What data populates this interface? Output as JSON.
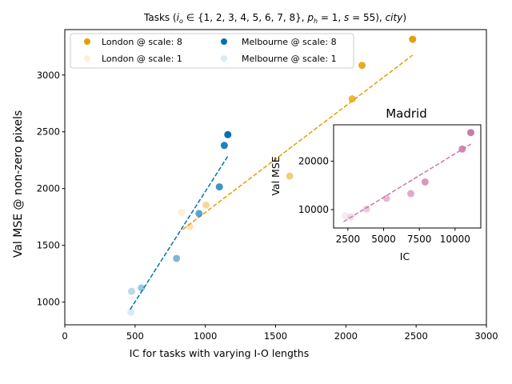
{
  "chart_data": [
    {
      "type": "scatter",
      "title": "Tasks $(i_o \\in \\{1,2,3,4,5,6,7,8\\}, p_h=1, s=55), city)$",
      "title_parts": {
        "prefix": "Tasks (",
        "io": "i",
        "io_sub": "o",
        "set": " ∈ {1, 2, 3, 4, 5, 6, 7, 8}, ",
        "ph": "p",
        "ph_sub": "h",
        "rest1": " = 1, ",
        "s": "s",
        "rest2": " = 55), ",
        "city": "city",
        "suffix": ")"
      },
      "xlabel": "IC for tasks with varying I-O lengths",
      "ylabel": "Val MSE @ non-zero pixels",
      "xlim": [
        0,
        3000
      ],
      "ylim": [
        800,
        3400
      ],
      "xticks": [
        0,
        500,
        1000,
        1500,
        2000,
        2500,
        3000
      ],
      "yticks": [
        1000,
        1500,
        2000,
        2500,
        3000
      ],
      "xtick_labels": [
        "0",
        "500",
        "1000",
        "1500",
        "2000",
        "2500",
        "3000"
      ],
      "ytick_labels": [
        "1000",
        "1500",
        "2000",
        "2500",
        "3000"
      ],
      "grid": false,
      "legend": {
        "placement": "top-left",
        "entries": [
          "London @ scale: 8",
          "London @ scale: 1",
          "Melbourne @ scale: 8",
          "Melbourne @ scale: 1"
        ]
      },
      "series": [
        {
          "name": "London",
          "color": "#e69f00",
          "scale_opacity": {
            "1": 0.15,
            "8": 1.0
          },
          "points": [
            {
              "x": 830,
              "y": 1790,
              "scale": 1
            },
            {
              "x": 890,
              "y": 1665,
              "scale": 2
            },
            {
              "x": 1005,
              "y": 1855,
              "scale": 3
            },
            {
              "x": 1600,
              "y": 2110,
              "scale": 4
            },
            {
              "x": 2045,
              "y": 2790,
              "scale": 6
            },
            {
              "x": 2115,
              "y": 3085,
              "scale": 7
            },
            {
              "x": 2475,
              "y": 3315,
              "scale": 8
            }
          ],
          "fit": {
            "x": [
              840,
              2475
            ],
            "y": [
              1640,
              3175
            ]
          }
        },
        {
          "name": "Melbourne",
          "color": "#0072b2",
          "scale_opacity": {
            "1": 0.15,
            "8": 1.0
          },
          "points": [
            {
              "x": 470,
              "y": 910,
              "scale": 1
            },
            {
              "x": 475,
              "y": 1095,
              "scale": 2
            },
            {
              "x": 545,
              "y": 1125,
              "scale": 3
            },
            {
              "x": 795,
              "y": 1385,
              "scale": 4
            },
            {
              "x": 955,
              "y": 1780,
              "scale": 5
            },
            {
              "x": 1100,
              "y": 2015,
              "scale": 6
            },
            {
              "x": 1135,
              "y": 2380,
              "scale": 7
            },
            {
              "x": 1160,
              "y": 2475,
              "scale": 8
            }
          ],
          "fit": {
            "x": [
              465,
              1160
            ],
            "y": [
              935,
              2285
            ]
          }
        }
      ]
    },
    {
      "type": "scatter",
      "title": "Madrid",
      "xlabel": "IC",
      "ylabel": "Val MSE",
      "xlim": [
        1500,
        11800
      ],
      "ylim": [
        6200,
        27500
      ],
      "xticks": [
        2500,
        5000,
        7500,
        10000
      ],
      "yticks": [
        10000,
        20000
      ],
      "xtick_labels": [
        "2500",
        "5000",
        "7500",
        "10000"
      ],
      "ytick_labels": [
        "10000",
        "20000"
      ],
      "grid": false,
      "series": [
        {
          "name": "Madrid",
          "color": "#cc79a7",
          "scale_opacity": {
            "1": 0.15,
            "8": 1.0
          },
          "points": [
            {
              "x": 2300,
              "y": 8700,
              "scale": 1
            },
            {
              "x": 2700,
              "y": 8500,
              "scale": 2
            },
            {
              "x": 3800,
              "y": 10100,
              "scale": 3
            },
            {
              "x": 5200,
              "y": 12300,
              "scale": 4
            },
            {
              "x": 6900,
              "y": 13300,
              "scale": 5
            },
            {
              "x": 7900,
              "y": 15700,
              "scale": 6
            },
            {
              "x": 10500,
              "y": 22500,
              "scale": 7
            },
            {
              "x": 11100,
              "y": 25900,
              "scale": 8
            }
          ],
          "fit": {
            "x": [
              2200,
              11100
            ],
            "y": [
              7500,
              23500
            ]
          }
        }
      ]
    }
  ]
}
